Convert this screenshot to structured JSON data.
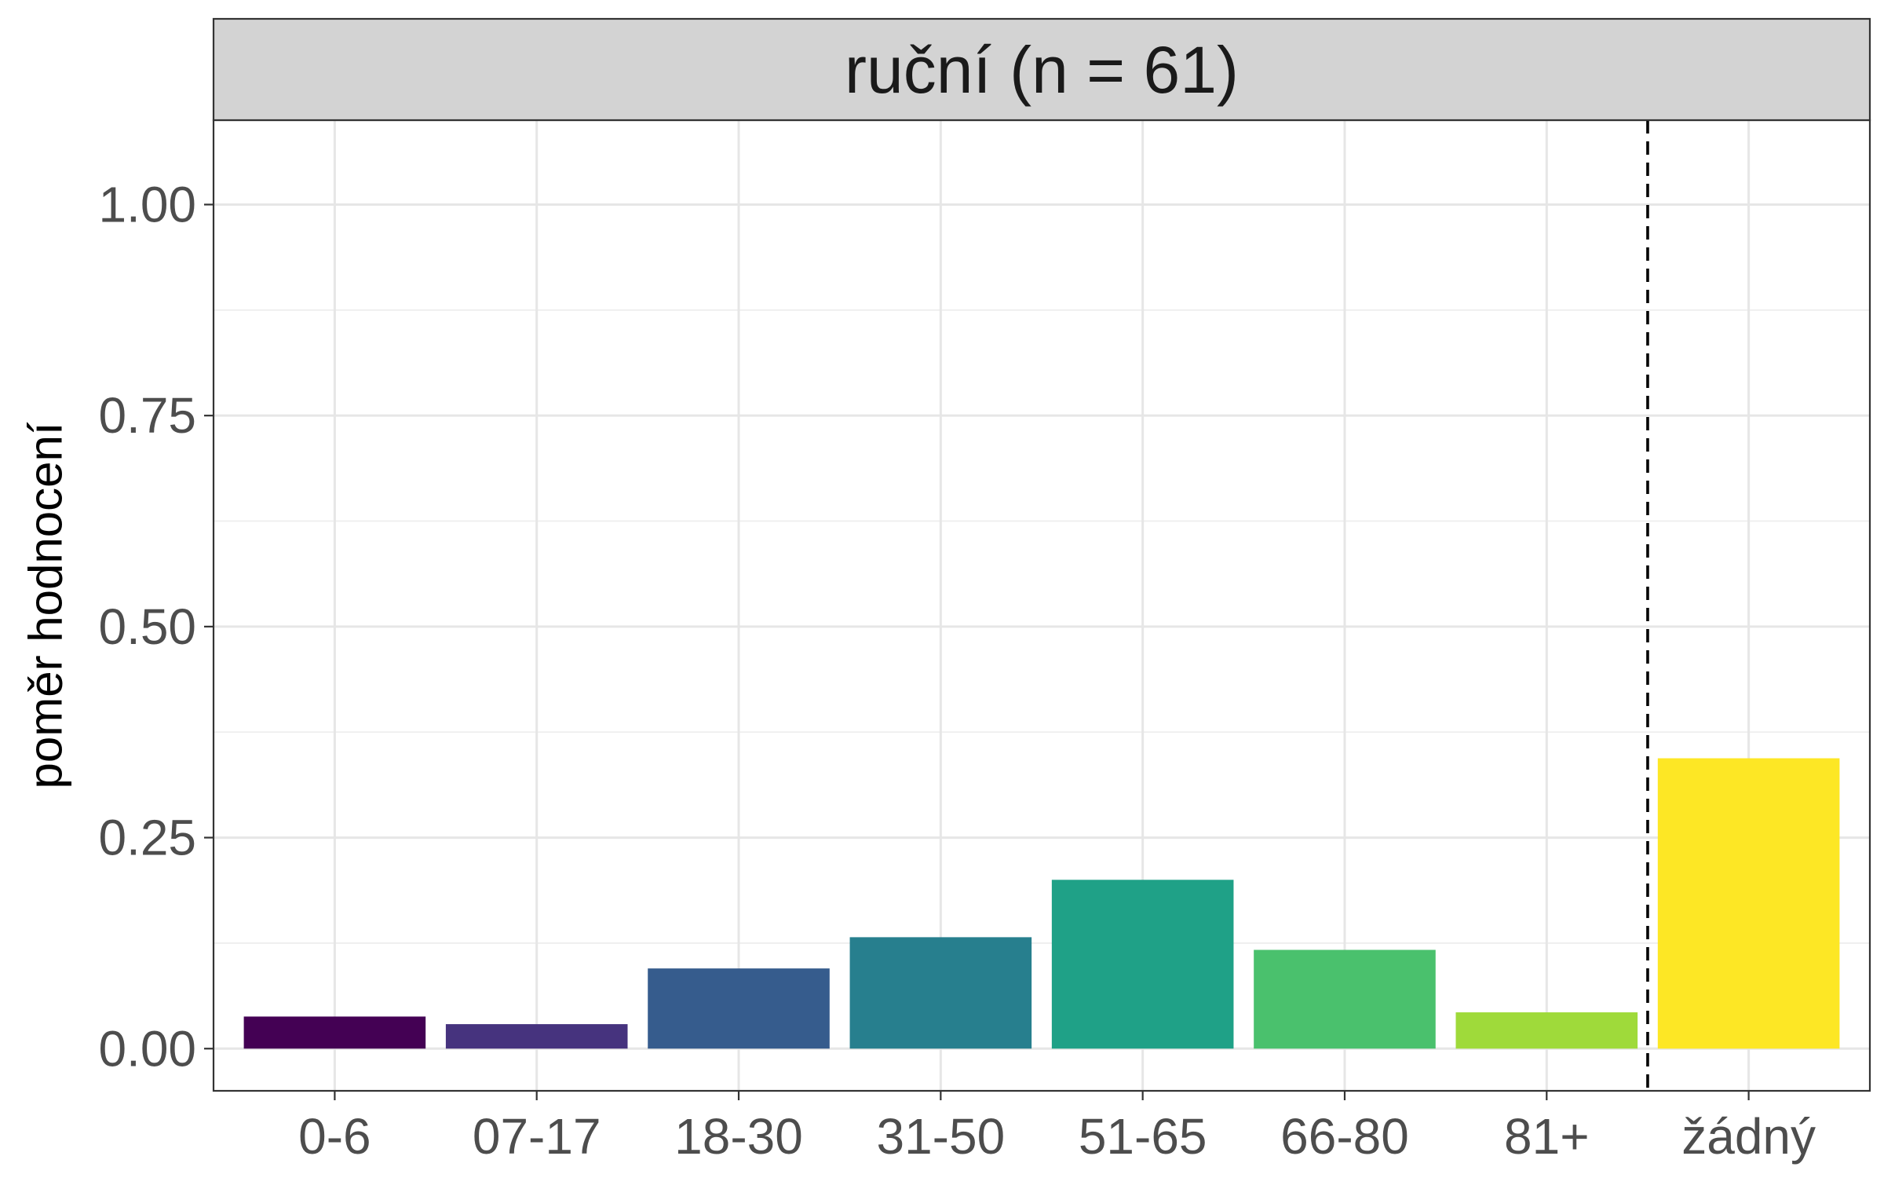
{
  "chart_data": {
    "type": "bar",
    "title": "ruční (n = 61)",
    "ylabel": "poměr hodnocení",
    "xlabel": "",
    "ylim": [
      -0.05,
      1.1
    ],
    "y_ticks": [
      0.0,
      0.25,
      0.5,
      0.75,
      1.0
    ],
    "y_tick_labels": [
      "0.00",
      "0.25",
      "0.50",
      "0.75",
      "1.00"
    ],
    "categories": [
      "0-6",
      "07-17",
      "18-30",
      "31-50",
      "51-65",
      "66-80",
      "81+",
      "žádný"
    ],
    "values": [
      0.038,
      0.029,
      0.095,
      0.132,
      0.2,
      0.117,
      0.043,
      0.344
    ],
    "colors": [
      "#440154",
      "#46337E",
      "#365C8D",
      "#277F8E",
      "#1FA187",
      "#4AC16D",
      "#9FDA3A",
      "#FDE725"
    ],
    "grid": true,
    "legend": "none",
    "reference_line": {
      "style": "dashed",
      "color": "#000000",
      "between": [
        "81+",
        "žádný"
      ]
    }
  }
}
